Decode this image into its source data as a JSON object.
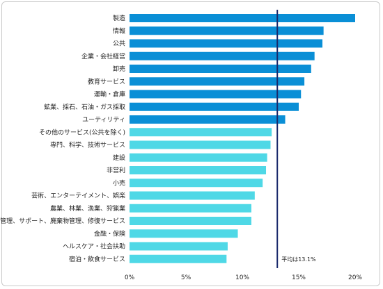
{
  "chart_data": {
    "type": "bar",
    "orientation": "horizontal",
    "categories": [
      "製造",
      "情報",
      "公共",
      "企業・会社経営",
      "卸売",
      "教育サービス",
      "運輸・倉庫",
      "鉱業、採石、石油・ガス採取",
      "ユーティリティ",
      "その他のサービス(公共を除く)",
      "専門、科学、技術サービス",
      "建設",
      "非営利",
      "小売",
      "芸術、エンターテイメント、娯楽",
      "農業、林業、漁業、狩猟業",
      "管理、サポート、廃棄物管理、修復サービス",
      "金融・保険",
      "ヘルスケア・社会扶助",
      "宿泊・飲食サービス"
    ],
    "values": [
      20.0,
      17.2,
      17.1,
      16.4,
      16.1,
      15.5,
      15.2,
      15.0,
      13.8,
      12.6,
      12.5,
      12.2,
      12.1,
      11.8,
      11.1,
      10.8,
      10.8,
      9.6,
      8.7,
      8.6
    ],
    "bar_colors": {
      "above_average": "#0a8fd6",
      "below_average": "#4fd8e6"
    },
    "above_average_count": 9,
    "average": {
      "value": 13.1,
      "label": "平均は13.1%",
      "color": "#1a2a6c"
    },
    "xlim": [
      0,
      20
    ],
    "xticks": [
      "0%",
      "5%",
      "10%",
      "15%",
      "20%"
    ],
    "grid": false,
    "title": "",
    "xlabel": "",
    "ylabel": ""
  }
}
